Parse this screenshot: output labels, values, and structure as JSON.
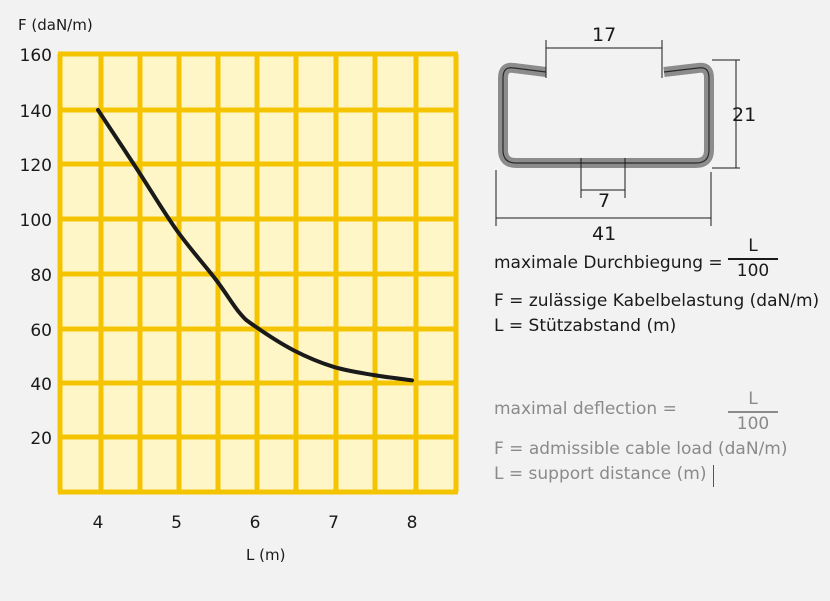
{
  "chart_data": {
    "type": "line",
    "ylabel": "F (daN/m)",
    "xlabel": "L (m)",
    "x_ticks": [
      "4",
      "5",
      "6",
      "7",
      "8"
    ],
    "y_ticks": [
      "160",
      "140",
      "120",
      "100",
      "80",
      "60",
      "40",
      "20"
    ],
    "xlim": [
      3.5,
      8.5
    ],
    "ylim": [
      0,
      160
    ],
    "grid": true,
    "series": [
      {
        "x": [
          4,
          4.5,
          5,
          5.5,
          5.8,
          6,
          6.5,
          7,
          7.5,
          8
        ],
        "y": [
          140,
          118,
          96,
          78,
          66,
          61,
          52,
          46,
          43,
          41
        ],
        "color": "#1a1a1a"
      }
    ],
    "colors": {
      "grid": "#f5c400",
      "fill": "#fff6c8",
      "line": "#1a1a1a"
    }
  },
  "profile": {
    "dim_top": "17",
    "dim_height": "21",
    "dim_slot": "7",
    "dim_width": "41",
    "color": "#8c8c8c"
  },
  "legend_de": {
    "deflection_label": "maximale Durchbiegung =",
    "numerator": "L",
    "denominator": "100",
    "f_line": "F = zulässige Kabelbelastung (daN/m)",
    "l_line": "L = Stützabstand (m)"
  },
  "legend_en": {
    "deflection_label": "maximal deflection =",
    "numerator": "L",
    "denominator": "100",
    "f_line": "F = admissible cable load (daN/m)",
    "l_line": "L = support distance (m)"
  }
}
